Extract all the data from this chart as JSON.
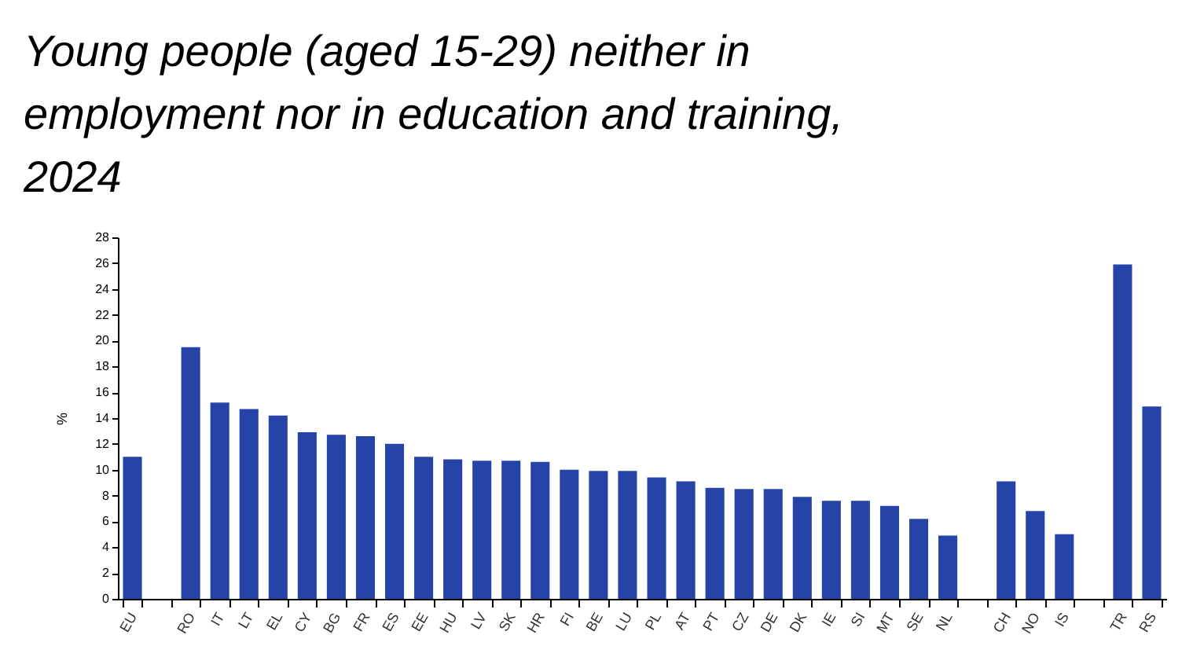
{
  "chart_data": {
    "type": "bar",
    "title": "Young people (aged 15-29) neither in employment nor in education and training, 2024",
    "ylabel": "%",
    "categories": [
      "EU",
      null,
      "RO",
      "IT",
      "LT",
      "EL",
      "CY",
      "BG",
      "FR",
      "ES",
      "EE",
      "HU",
      "LV",
      "SK",
      "HR",
      "FI",
      "BE",
      "LU",
      "PL",
      "AT",
      "PT",
      "CZ",
      "DE",
      "DK",
      "IE",
      "SI",
      "MT",
      "SE",
      "NL",
      null,
      "CH",
      "NO",
      "IS",
      null,
      "TR",
      "RS"
    ],
    "series": [
      {
        "color": "#2644a7",
        "values": [
          11.0,
          null,
          19.5,
          15.2,
          14.7,
          14.2,
          12.9,
          12.7,
          12.6,
          12.0,
          11.0,
          10.8,
          10.7,
          10.7,
          10.6,
          10.0,
          9.9,
          9.9,
          9.4,
          9.1,
          8.6,
          8.5,
          8.5,
          7.9,
          7.6,
          7.6,
          7.2,
          6.2,
          4.9,
          null,
          9.1,
          6.8,
          5.0,
          null,
          25.9,
          14.9
        ]
      }
    ],
    "ylim": [
      0,
      28
    ],
    "yticks": [
      0,
      2,
      4,
      6,
      8,
      10,
      12,
      14,
      16,
      18,
      20,
      22,
      24,
      26,
      28
    ],
    "grid": false
  }
}
